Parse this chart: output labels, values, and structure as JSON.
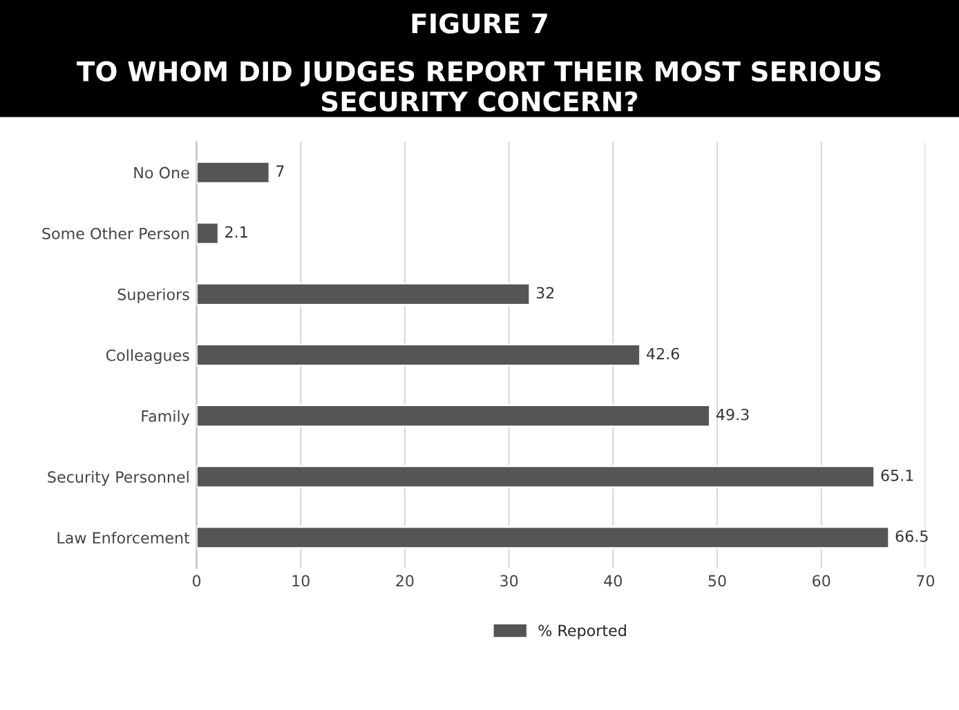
{
  "chart_data": {
    "type": "bar",
    "orientation": "horizontal",
    "title": "FIGURE 7",
    "subtitle": "TO WHOM DID JUDGES REPORT THEIR MOST SERIOUS SECURITY CONCERN?",
    "categories": [
      "No One",
      "Some Other Person",
      "Superiors",
      "Colleagues",
      "Family",
      "Security Personnel",
      "Law Enforcement"
    ],
    "series": [
      {
        "name": "% Reported",
        "color": "#555555",
        "values": [
          7,
          2.1,
          32,
          42.6,
          49.3,
          65.1,
          66.5
        ]
      }
    ],
    "xlim": [
      0,
      70
    ],
    "xticks": [
      0,
      10,
      20,
      30,
      40,
      50,
      60,
      70
    ],
    "grid": "x",
    "legend": "bottom",
    "data_labels": true
  }
}
